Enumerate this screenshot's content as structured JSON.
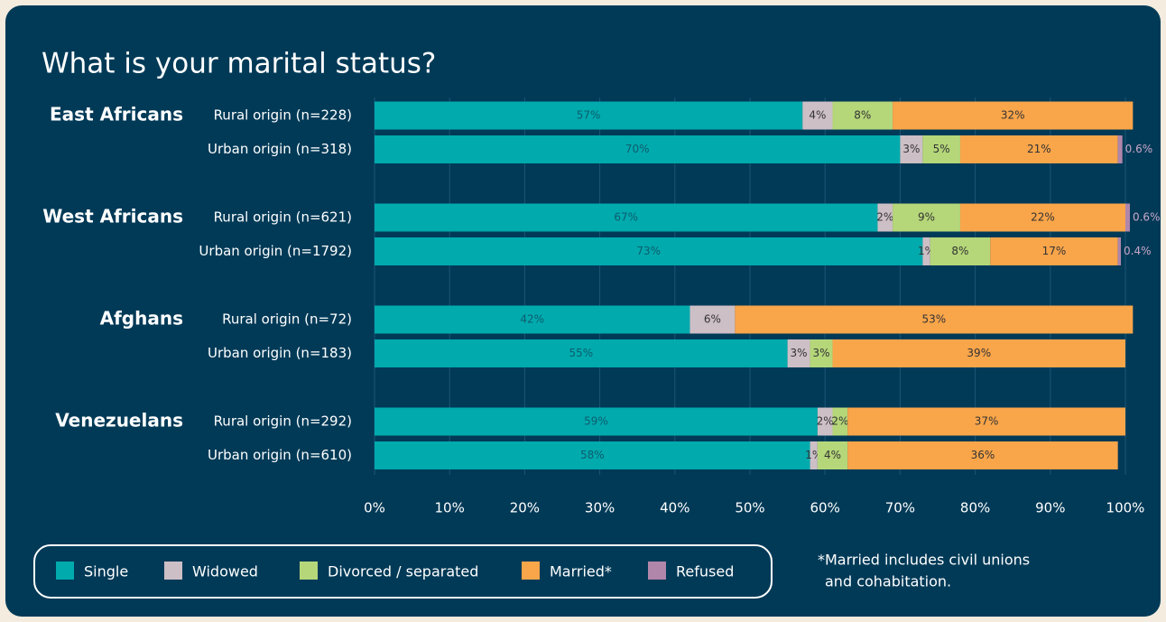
{
  "chart_data": {
    "type": "stacked-bar-horizontal",
    "title": "What is your marital status?",
    "groups": [
      "East Africans",
      "West Africans",
      "Afghans",
      "Venezuelans"
    ],
    "categories": [
      "Rural origin (n=228)",
      "Urban origin (n=318)",
      "Rural origin (n=621)",
      "Urban origin (n=1792)",
      "Rural origin (n=72)",
      "Urban origin (n=183)",
      "Rural origin (n=292)",
      "Urban origin (n=610)"
    ],
    "series": [
      {
        "name": "Single",
        "color": "#00aaad",
        "values": [
          57,
          70,
          67,
          73,
          42,
          55,
          59,
          58
        ],
        "value_labels": [
          "57%",
          "70%",
          "67%",
          "73%",
          "42%",
          "55%",
          "59%",
          "58%"
        ]
      },
      {
        "name": "Widowed",
        "color": "#cdbfc6",
        "values": [
          4,
          3,
          2,
          1,
          6,
          3,
          2,
          1
        ],
        "value_labels": [
          "4%",
          "3%",
          "2%",
          "1%",
          "6%",
          "3%",
          "2%",
          "1%"
        ]
      },
      {
        "name": "Divorced / separated",
        "color": "#b5d779",
        "values": [
          8,
          5,
          9,
          8,
          null,
          3,
          2,
          4
        ],
        "value_labels": [
          "8%",
          "5%",
          "9%",
          "8%",
          null,
          "3%",
          "2%",
          "4%"
        ]
      },
      {
        "name": "Married*",
        "color": "#f9a54a",
        "values": [
          32,
          21,
          22,
          17,
          53,
          39,
          37,
          36
        ],
        "value_labels": [
          "32%",
          "21%",
          "22%",
          "17%",
          "53%",
          "39%",
          "37%",
          "36%"
        ]
      },
      {
        "name": "Refused",
        "color": "#b086aa",
        "values": [
          null,
          0.6,
          0.6,
          0.4,
          null,
          null,
          null,
          null
        ],
        "value_labels": [
          null,
          "0.6%",
          "0.6%",
          "0.4%",
          null,
          null,
          null,
          null
        ]
      }
    ],
    "xlim": [
      0,
      100
    ],
    "xticks": [
      {
        "value": 0,
        "label": "0%"
      },
      {
        "value": 10,
        "label": "10%"
      },
      {
        "value": 20,
        "label": "20%"
      },
      {
        "value": 30,
        "label": "30%"
      },
      {
        "value": 40,
        "label": "40%"
      },
      {
        "value": 50,
        "label": "50%"
      },
      {
        "value": 60,
        "label": "60%"
      },
      {
        "value": 70,
        "label": "70%"
      },
      {
        "value": 80,
        "label": "80%"
      },
      {
        "value": 90,
        "label": "90%"
      },
      {
        "value": 100,
        "label": "100%"
      }
    ],
    "grid": true,
    "legend": "bottom",
    "footnote": [
      "*Married includes civil unions",
      "and cohabitation."
    ]
  }
}
